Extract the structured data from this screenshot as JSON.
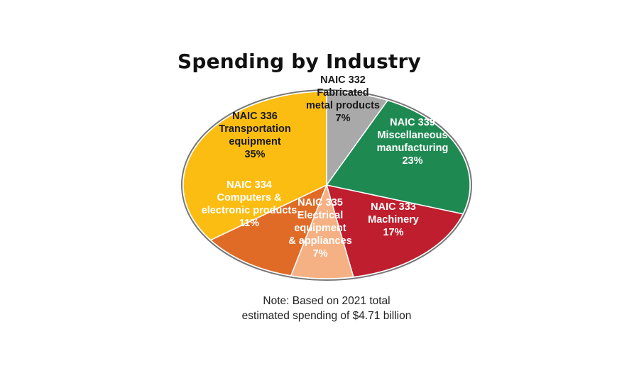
{
  "chart_data": {
    "type": "pie",
    "title": "Spending by Industry",
    "note": {
      "line1": "Note: Based on 2021 total",
      "line2": "estimated spending of $4.71 billion"
    },
    "slices": [
      {
        "label_lines": [
          "NAIC 332",
          "Fabricated",
          "metal products",
          "7%"
        ],
        "value": 7,
        "color": "#a9a9a9",
        "label_color": "#1a1a1a"
      },
      {
        "label_lines": [
          "NAIC 339",
          "Miscellaneous",
          "manufacturing",
          "23%"
        ],
        "value": 23,
        "color": "#1e8a52",
        "label_color": "#ffffff"
      },
      {
        "label_lines": [
          "NAIC 333",
          "Machinery",
          "17%"
        ],
        "value": 17,
        "color": "#be1e2d",
        "label_color": "#ffffff"
      },
      {
        "label_lines": [
          "NAIC 335",
          "Electrical",
          "equipment",
          "& appliances",
          "7%"
        ],
        "value": 7,
        "color": "#f5b183",
        "label_color": "#ffffff"
      },
      {
        "label_lines": [
          "NAIC 334",
          "Computers &",
          "electronic products",
          "11%"
        ],
        "value": 11,
        "color": "#e06b26",
        "label_color": "#ffffff"
      },
      {
        "label_lines": [
          "NAIC 336",
          "Transportation",
          "equipment",
          "35%"
        ],
        "value": 35,
        "color": "#fbbd12",
        "label_color": "#1a1a1a"
      }
    ]
  }
}
